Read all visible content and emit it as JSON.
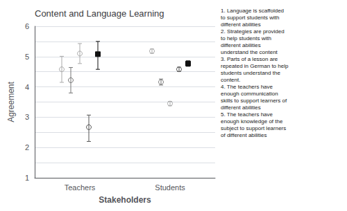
{
  "chart_data": {
    "type": "scatter",
    "title": "Content and Language Learning",
    "xlabel": "Stakeholders",
    "ylabel": "Agreement",
    "categories": [
      "Teachers",
      "Students"
    ],
    "ylim": [
      1,
      6
    ],
    "yticks": [
      1,
      {
        "value": 1.5,
        "label": ""
      },
      2,
      {
        "value": 2.5,
        "label": ""
      },
      3,
      {
        "value": 3.5,
        "label": ""
      },
      4,
      {
        "value": 4.5,
        "label": ""
      },
      5,
      {
        "value": 5.5,
        "label": ""
      },
      6
    ],
    "grid": true,
    "series": [
      {
        "color": "#aaaaaa",
        "marker": "circle-open",
        "values": [
          4.58,
          5.18
        ],
        "error_low": [
          0.43,
          0.07
        ],
        "error_high": [
          0.43,
          0.07
        ]
      },
      {
        "color": "#777777",
        "marker": "circle-open",
        "values": [
          4.22,
          4.16
        ],
        "error_low": [
          0.42,
          0.1
        ],
        "error_high": [
          0.42,
          0.1
        ]
      },
      {
        "color": "#aaaaaa",
        "marker": "circle-open",
        "values": [
          5.1,
          3.45
        ],
        "error_low": [
          0.33,
          0.07
        ],
        "error_high": [
          0.33,
          0.07
        ]
      },
      {
        "color": "#555555",
        "marker": "circle-open",
        "values": [
          2.67,
          4.58
        ],
        "error_low": [
          0.47,
          0.07
        ],
        "error_high": [
          0.4,
          0.07
        ]
      },
      {
        "color": "#111111",
        "marker": "square",
        "values": [
          5.08,
          4.77
        ],
        "error_low": [
          0.5,
          0.09
        ],
        "error_high": [
          0.42,
          0.09
        ]
      }
    ],
    "annotations": [
      "1. Language is scaffolded\nto support students with\ndifferent abilities",
      "2. Strategies are provided\nto help students with\ndifferent abilities\nunderstand the content",
      "3. Parts of a lesson are\nrepeated in German to help\nstudents understand the\ncontent.",
      "4. The teachers have\nenough communication\nskills to support learners of\ndifferent abilities",
      "5. The teachers have\nenough knowledge of the\nsubject to support learners\nof different abilities"
    ]
  }
}
